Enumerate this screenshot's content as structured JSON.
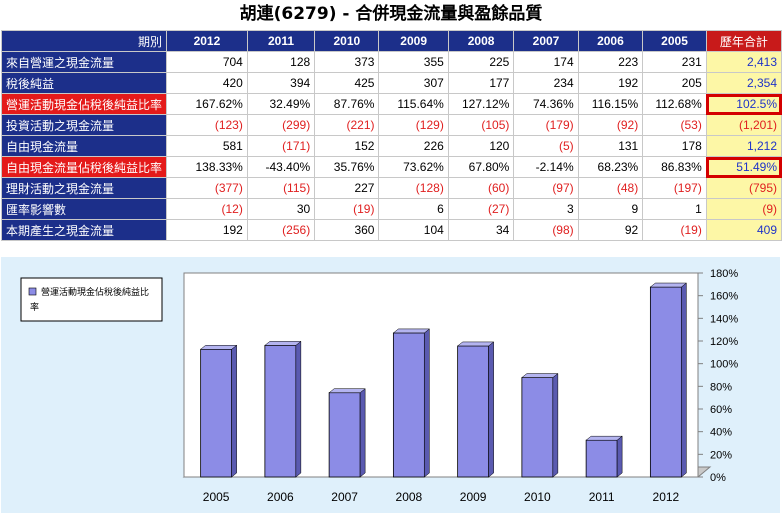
{
  "title": "胡連(6279) - 合併現金流量與盈餘品質",
  "table": {
    "period_label": "期別",
    "years": [
      "2012",
      "2011",
      "2010",
      "2009",
      "2008",
      "2007",
      "2006",
      "2005"
    ],
    "total_label": "歷年合計",
    "rows": [
      {
        "label": "來自營運之現金流量",
        "highlight": false,
        "values": [
          "704",
          "128",
          "373",
          "355",
          "225",
          "174",
          "223",
          "231"
        ],
        "total": "2,413",
        "neg": [
          false,
          false,
          false,
          false,
          false,
          false,
          false,
          false
        ],
        "total_neg": false,
        "boxed": false
      },
      {
        "label": "稅後純益",
        "highlight": false,
        "values": [
          "420",
          "394",
          "425",
          "307",
          "177",
          "234",
          "192",
          "205"
        ],
        "total": "2,354",
        "neg": [
          false,
          false,
          false,
          false,
          false,
          false,
          false,
          false
        ],
        "total_neg": false,
        "boxed": false
      },
      {
        "label": "營運活動現金佔稅後純益比率",
        "highlight": true,
        "values": [
          "167.62%",
          "32.49%",
          "87.76%",
          "115.64%",
          "127.12%",
          "74.36%",
          "116.15%",
          "112.68%"
        ],
        "total": "102.5%",
        "neg": [
          false,
          false,
          false,
          false,
          false,
          false,
          false,
          false
        ],
        "total_neg": false,
        "boxed": true
      },
      {
        "label": "投資活動之現金流量",
        "highlight": false,
        "values": [
          "(123)",
          "(299)",
          "(221)",
          "(129)",
          "(105)",
          "(179)",
          "(92)",
          "(53)"
        ],
        "total": "(1,201)",
        "neg": [
          true,
          true,
          true,
          true,
          true,
          true,
          true,
          true
        ],
        "total_neg": true,
        "boxed": false
      },
      {
        "label": "自由現金流量",
        "highlight": false,
        "values": [
          "581",
          "(171)",
          "152",
          "226",
          "120",
          "(5)",
          "131",
          "178"
        ],
        "total": "1,212",
        "neg": [
          false,
          true,
          false,
          false,
          false,
          true,
          false,
          false
        ],
        "total_neg": false,
        "boxed": false
      },
      {
        "label": "自由現金流量佔稅後純益比率",
        "highlight": true,
        "values": [
          "138.33%",
          "-43.40%",
          "35.76%",
          "73.62%",
          "67.80%",
          "-2.14%",
          "68.23%",
          "86.83%"
        ],
        "total": "51.49%",
        "neg": [
          false,
          false,
          false,
          false,
          false,
          false,
          false,
          false
        ],
        "total_neg": false,
        "boxed": true
      },
      {
        "label": "理財活動之現金流量",
        "highlight": false,
        "values": [
          "(377)",
          "(115)",
          "227",
          "(128)",
          "(60)",
          "(97)",
          "(48)",
          "(197)"
        ],
        "total": "(795)",
        "neg": [
          true,
          true,
          false,
          true,
          true,
          true,
          true,
          true
        ],
        "total_neg": true,
        "boxed": false
      },
      {
        "label": "匯率影響數",
        "highlight": false,
        "values": [
          "(12)",
          "30",
          "(19)",
          "6",
          "(27)",
          "3",
          "9",
          "1"
        ],
        "total": "(9)",
        "neg": [
          true,
          false,
          true,
          false,
          true,
          false,
          false,
          false
        ],
        "total_neg": true,
        "boxed": false
      },
      {
        "label": "本期產生之現金流量",
        "highlight": false,
        "values": [
          "192",
          "(256)",
          "360",
          "104",
          "34",
          "(98)",
          "92",
          "(19)"
        ],
        "total": "409",
        "neg": [
          false,
          true,
          false,
          false,
          false,
          true,
          false,
          true
        ],
        "total_neg": false,
        "boxed": false
      }
    ]
  },
  "chart_data": {
    "type": "bar",
    "categories": [
      "2005",
      "2006",
      "2007",
      "2008",
      "2009",
      "2010",
      "2011",
      "2012"
    ],
    "series": [
      {
        "name": "營運活動現金佔稅後純益比率",
        "values": [
          112.68,
          116.15,
          74.36,
          127.12,
          115.64,
          87.76,
          32.49,
          167.62
        ]
      }
    ],
    "ylim": [
      0,
      180
    ],
    "yticks": [
      "0%",
      "20%",
      "40%",
      "60%",
      "80%",
      "100%",
      "120%",
      "140%",
      "160%",
      "180%"
    ],
    "ytick_values": [
      0,
      20,
      40,
      60,
      80,
      100,
      120,
      140,
      160,
      180
    ],
    "y_axis_side": "right",
    "legend": "top-left",
    "grid": false,
    "bar_color": "#8c8ce6"
  }
}
